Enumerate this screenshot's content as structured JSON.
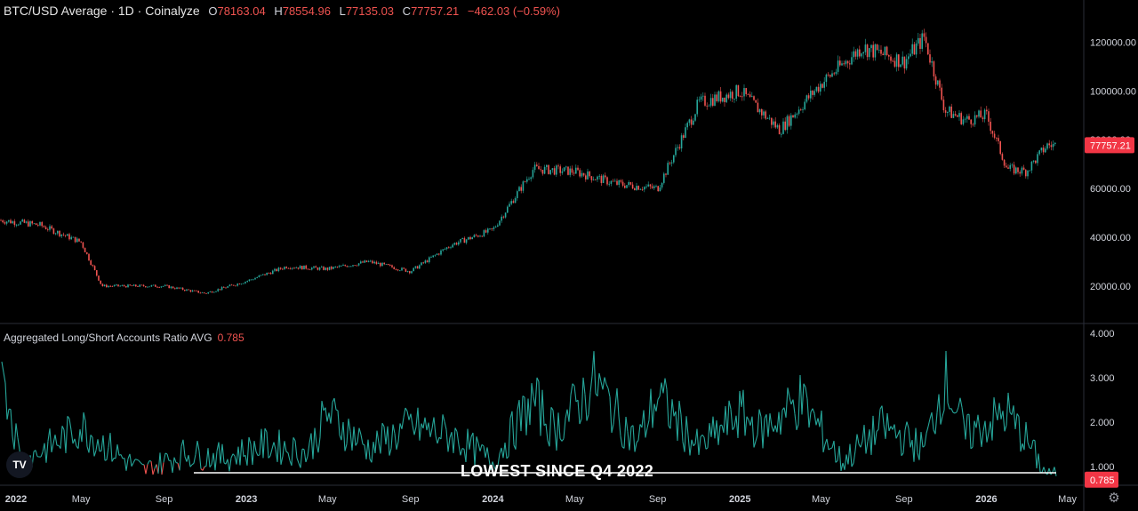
{
  "header": {
    "title": "BTC/USD Average · 1D · Coinalyze",
    "open_label": "O",
    "open": "78163.04",
    "high_label": "H",
    "high": "78554.96",
    "low_label": "L",
    "low": "77135.03",
    "close_label": "C",
    "close": "77757.21",
    "change": "−462.03 (−0.59%)"
  },
  "indicator": {
    "name": "Aggregated Long/Short Accounts Ratio AVG",
    "value": "0.785"
  },
  "annotation": "LOWEST SINCE Q4 2022",
  "logo_text": "TV",
  "colors": {
    "up": "#26a69a",
    "down": "#ef5350",
    "price_tag_bg": "#f23645",
    "ratio_line": "#26a69a",
    "ratio_low": "#ef5350",
    "support_line": "#ffffff"
  },
  "icons": {
    "settings": "gear-icon"
  },
  "chart_data": [
    {
      "type": "candlestick",
      "title": "BTC/USD Average · 1D · Coinalyze",
      "x": [
        "2022-01",
        "2022-03",
        "2022-05",
        "2022-06",
        "2022-09",
        "2022-11",
        "2023-01",
        "2023-03",
        "2023-05",
        "2023-07",
        "2023-09",
        "2023-11",
        "2024-01",
        "2024-03",
        "2024-05",
        "2024-07",
        "2024-09",
        "2024-11",
        "2025-01",
        "2025-03",
        "2025-05",
        "2025-07",
        "2025-09",
        "2025-10",
        "2025-11",
        "2025-12",
        "2026-01",
        "2026-02",
        "2026-03",
        "2026-04"
      ],
      "close": [
        47000,
        45000,
        38000,
        20000,
        20000,
        17000,
        22000,
        28000,
        27000,
        30000,
        26000,
        37000,
        43000,
        68000,
        67000,
        62000,
        60000,
        95000,
        100000,
        84000,
        103000,
        118000,
        112000,
        122000,
        92000,
        88000,
        90000,
        68000,
        67000,
        77757.21
      ],
      "y_ticks": [
        20000,
        40000,
        60000,
        80000,
        100000,
        120000
      ],
      "y_tick_labels": [
        "20000.00",
        "40000.00",
        "60000.00",
        "80000.00",
        "100000.00",
        "120000.00"
      ],
      "ylim": [
        5000,
        130000
      ],
      "last_price_label": "77757.21"
    },
    {
      "type": "line",
      "title": "Aggregated Long/Short Accounts Ratio AVG",
      "x": [
        "2022-01",
        "2022-02",
        "2022-04",
        "2022-05",
        "2022-07",
        "2022-08",
        "2022-10",
        "2022-12",
        "2023-02",
        "2023-04",
        "2023-05",
        "2023-07",
        "2023-09",
        "2023-11",
        "2024-01",
        "2024-03",
        "2024-04",
        "2024-06",
        "2024-08",
        "2024-09",
        "2024-11",
        "2025-01",
        "2025-02",
        "2025-04",
        "2025-06",
        "2025-08",
        "2025-10",
        "2025-11",
        "2025-12",
        "2026-02",
        "2026-03",
        "2026-04"
      ],
      "values": [
        3.6,
        1.1,
        1.6,
        1.9,
        1.2,
        0.9,
        1.3,
        1.2,
        1.5,
        1.3,
        2.2,
        1.4,
        1.9,
        1.7,
        1.1,
        2.5,
        1.8,
        2.9,
        1.5,
        2.6,
        1.4,
        2.2,
        1.8,
        2.5,
        1.1,
        1.9,
        1.4,
        3.0,
        1.7,
        2.2,
        1.6,
        0.785
      ],
      "y_ticks": [
        1,
        2,
        3,
        4
      ],
      "y_tick_labels": [
        "1.000",
        "2.000",
        "3.000",
        "4.000"
      ],
      "ylim": [
        0.6,
        4.2
      ],
      "last_value_label": "0.785",
      "annotation": "LOWEST SINCE Q4 2022"
    }
  ],
  "x_axis_labels": [
    "2022",
    "May",
    "Sep",
    "2023",
    "May",
    "Sep",
    "2024",
    "May",
    "Sep",
    "2025",
    "May",
    "Sep",
    "2026",
    "May"
  ]
}
